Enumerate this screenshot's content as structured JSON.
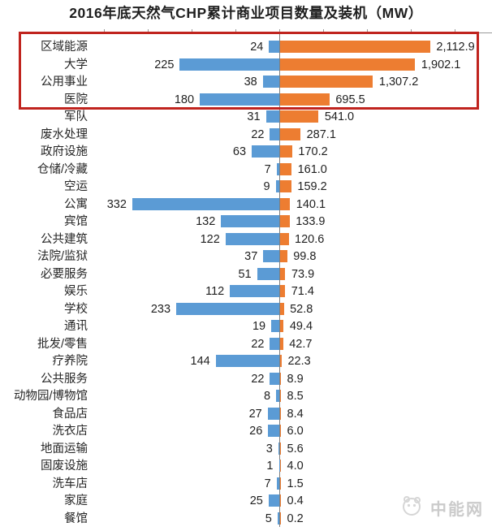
{
  "title": "2016年底天然气CHP累计商业项目数量及装机（MW）",
  "watermark": {
    "text": "中能网",
    "logo_icon": "panda-emblem"
  },
  "colors": {
    "count_bar": "#5b9bd5",
    "capacity_bar": "#ed7d31",
    "highlight_box": "#c0241e",
    "axis_line": "#9a9a9a",
    "watermark_gray": "#cbcbcb"
  },
  "chart_data": {
    "type": "bar",
    "orientation": "diverging-horizontal",
    "title": "2016年底天然气CHP累计商业项目数量及装机（MW）",
    "categories": [
      "区域能源",
      "大学",
      "公用事业",
      "医院",
      "军队",
      "废水处理",
      "政府设施",
      "仓储/冷藏",
      "空运",
      "公寓",
      "宾馆",
      "公共建筑",
      "法院/监狱",
      "必要服务",
      "娱乐",
      "学校",
      "通讯",
      "批发/零售",
      "疗养院",
      "公共服务",
      "动物园/博物馆",
      "食品店",
      "洗衣店",
      "地面运输",
      "固废设施",
      "洗车店",
      "家庭",
      "餐馆"
    ],
    "series": [
      {
        "name": "项目数量",
        "side": "left",
        "color": "#5b9bd5",
        "values": [
          24,
          225,
          38,
          180,
          31,
          22,
          63,
          7,
          9,
          332,
          132,
          122,
          37,
          51,
          112,
          233,
          19,
          22,
          144,
          22,
          8,
          27,
          26,
          3,
          1,
          7,
          25,
          5
        ],
        "labels": [
          "24",
          "225",
          "38",
          "180",
          "31",
          "22",
          "63",
          "7",
          "9",
          "332",
          "132",
          "122",
          "37",
          "51",
          "112",
          "233",
          "19",
          "22",
          "144",
          "22",
          "8",
          "27",
          "26",
          "3",
          "1",
          "7",
          "25",
          "5"
        ]
      },
      {
        "name": "装机（MW）",
        "side": "right",
        "color": "#ed7d31",
        "values": [
          2112.9,
          1902.1,
          1307.2,
          695.5,
          541.0,
          287.1,
          170.2,
          161.0,
          159.2,
          140.1,
          133.9,
          120.6,
          99.8,
          73.9,
          71.4,
          52.8,
          49.4,
          42.7,
          22.3,
          8.9,
          8.5,
          8.4,
          6.0,
          5.6,
          4.0,
          1.5,
          0.4,
          0.2
        ],
        "labels": [
          "2,112.9",
          "1,902.1",
          "1,307.2",
          "695.5",
          "541.0",
          "287.1",
          "170.2",
          "161.0",
          "159.2",
          "140.1",
          "133.9",
          "120.6",
          "99.8",
          "73.9",
          "71.4",
          "52.8",
          "49.4",
          "42.7",
          "22.3",
          "8.9",
          "8.5",
          "8.4",
          "6.0",
          "5.6",
          "4.0",
          "1.5",
          "0.4",
          "0.2"
        ],
        "unit": "MW"
      }
    ],
    "annotations": {
      "highlight": {
        "style": "red-box",
        "rows": [
          "区域能源",
          "大学",
          "公用事业",
          "医院"
        ]
      }
    },
    "layout_hints": {
      "value_labels_shown": true,
      "gridlines": false,
      "top_axis_ticks": 9,
      "center_baseline": 0
    }
  }
}
